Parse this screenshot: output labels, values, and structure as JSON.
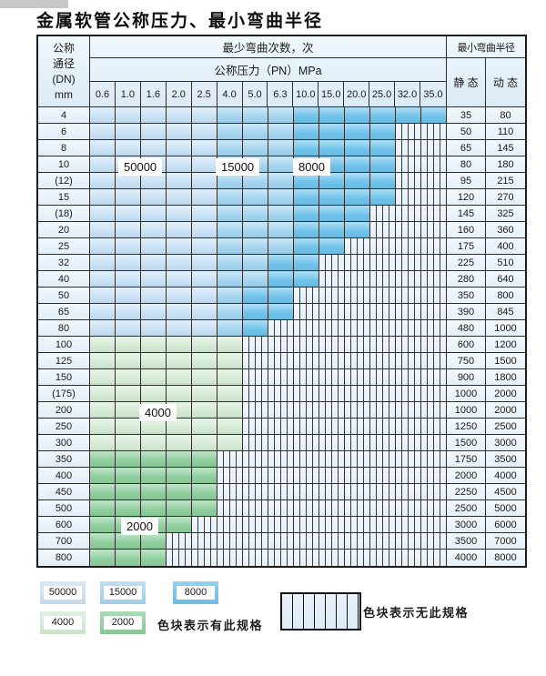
{
  "page": {
    "title": "金属软管公称压力、最小弯曲半径"
  },
  "table": {
    "header": {
      "dn_lines": [
        "公称",
        "通径",
        "(DN)",
        "mm"
      ],
      "cycles_title": "最少弯曲次数，次",
      "pressure_title": "公称压力（PN）MPa",
      "pressures": [
        "0.6",
        "1.0",
        "1.6",
        "2.0",
        "2.5",
        "4.0",
        "5.0",
        "6.3",
        "10.0",
        "15.0",
        "20.0",
        "25.0",
        "32.0",
        "35.0"
      ],
      "radius_title": "最小弯曲半径",
      "static_label": "静 态",
      "dynamic_label": "动 态"
    },
    "rows": [
      {
        "dn": "4",
        "static": "35",
        "dynamic": "80",
        "spans": [
          [
            "50000",
            5
          ],
          [
            "15000",
            3
          ],
          [
            "8000",
            6
          ]
        ]
      },
      {
        "dn": "6",
        "static": "50",
        "dynamic": "110",
        "spans": [
          [
            "50000",
            5
          ],
          [
            "15000",
            3
          ],
          [
            "8000",
            4
          ]
        ]
      },
      {
        "dn": "8",
        "static": "65",
        "dynamic": "145",
        "spans": [
          [
            "50000",
            5
          ],
          [
            "15000",
            3
          ],
          [
            "8000",
            4
          ]
        ]
      },
      {
        "dn": "10",
        "static": "80",
        "dynamic": "180",
        "spans": [
          [
            "50000",
            5
          ],
          [
            "15000",
            3
          ],
          [
            "8000",
            4
          ]
        ]
      },
      {
        "dn": "(12)",
        "static": "95",
        "dynamic": "215",
        "spans": [
          [
            "50000",
            5
          ],
          [
            "15000",
            3
          ],
          [
            "8000",
            4
          ]
        ]
      },
      {
        "dn": "15",
        "static": "120",
        "dynamic": "270",
        "spans": [
          [
            "50000",
            5
          ],
          [
            "15000",
            3
          ],
          [
            "8000",
            4
          ]
        ]
      },
      {
        "dn": "(18)",
        "static": "145",
        "dynamic": "325",
        "spans": [
          [
            "50000",
            5
          ],
          [
            "15000",
            3
          ],
          [
            "8000",
            3
          ]
        ]
      },
      {
        "dn": "20",
        "static": "160",
        "dynamic": "360",
        "spans": [
          [
            "50000",
            5
          ],
          [
            "15000",
            3
          ],
          [
            "8000",
            3
          ]
        ]
      },
      {
        "dn": "25",
        "static": "175",
        "dynamic": "400",
        "spans": [
          [
            "50000",
            5
          ],
          [
            "15000",
            3
          ],
          [
            "8000",
            2
          ]
        ]
      },
      {
        "dn": "32",
        "static": "225",
        "dynamic": "510",
        "spans": [
          [
            "50000",
            5
          ],
          [
            "15000",
            2
          ],
          [
            "8000",
            2
          ]
        ]
      },
      {
        "dn": "40",
        "static": "280",
        "dynamic": "640",
        "spans": [
          [
            "50000",
            5
          ],
          [
            "15000",
            2
          ],
          [
            "8000",
            2
          ]
        ]
      },
      {
        "dn": "50",
        "static": "350",
        "dynamic": "800",
        "spans": [
          [
            "50000",
            5
          ],
          [
            "15000",
            1
          ],
          [
            "8000",
            2
          ]
        ]
      },
      {
        "dn": "65",
        "static": "390",
        "dynamic": "845",
        "spans": [
          [
            "50000",
            5
          ],
          [
            "15000",
            1
          ],
          [
            "8000",
            2
          ]
        ]
      },
      {
        "dn": "80",
        "static": "480",
        "dynamic": "1000",
        "spans": [
          [
            "50000",
            5
          ],
          [
            "15000",
            1
          ],
          [
            "8000",
            1
          ]
        ]
      },
      {
        "dn": "100",
        "static": "600",
        "dynamic": "1200",
        "spans": [
          [
            "4000",
            6
          ]
        ]
      },
      {
        "dn": "125",
        "static": "750",
        "dynamic": "1500",
        "spans": [
          [
            "4000",
            6
          ]
        ]
      },
      {
        "dn": "150",
        "static": "900",
        "dynamic": "1800",
        "spans": [
          [
            "4000",
            6
          ]
        ]
      },
      {
        "dn": "(175)",
        "static": "1000",
        "dynamic": "2000",
        "spans": [
          [
            "4000",
            6
          ]
        ]
      },
      {
        "dn": "200",
        "static": "1000",
        "dynamic": "2000",
        "spans": [
          [
            "4000",
            6
          ]
        ]
      },
      {
        "dn": "250",
        "static": "1250",
        "dynamic": "2500",
        "spans": [
          [
            "4000",
            6
          ]
        ]
      },
      {
        "dn": "300",
        "static": "1500",
        "dynamic": "3000",
        "spans": [
          [
            "4000",
            6
          ]
        ]
      },
      {
        "dn": "350",
        "static": "1750",
        "dynamic": "3500",
        "spans": [
          [
            "2000",
            5
          ]
        ]
      },
      {
        "dn": "400",
        "static": "2000",
        "dynamic": "4000",
        "spans": [
          [
            "2000",
            5
          ]
        ]
      },
      {
        "dn": "450",
        "static": "2250",
        "dynamic": "4500",
        "spans": [
          [
            "2000",
            5
          ]
        ]
      },
      {
        "dn": "500",
        "static": "2500",
        "dynamic": "5000",
        "spans": [
          [
            "2000",
            5
          ]
        ]
      },
      {
        "dn": "600",
        "static": "3000",
        "dynamic": "6000",
        "spans": [
          [
            "2000",
            4
          ]
        ]
      },
      {
        "dn": "700",
        "static": "3500",
        "dynamic": "7000",
        "spans": [
          [
            "2000",
            3
          ]
        ]
      },
      {
        "dn": "800",
        "static": "4000",
        "dynamic": "8000",
        "spans": [
          [
            "2000",
            3
          ]
        ]
      }
    ],
    "overlay_labels": [
      {
        "text": "50000"
      },
      {
        "text": "15000"
      },
      {
        "text": "8000"
      },
      {
        "text": "4000"
      },
      {
        "text": "2000"
      }
    ]
  },
  "legend": {
    "items": [
      {
        "key": "50000",
        "label": "50000"
      },
      {
        "key": "15000",
        "label": "15000"
      },
      {
        "key": "8000",
        "label": "8000"
      },
      {
        "key": "4000",
        "label": "4000"
      },
      {
        "key": "2000",
        "label": "2000"
      }
    ],
    "has_spec_text": "色块表示有此规格",
    "no_spec_text": "色块表示无此规格"
  },
  "colors": {
    "50000": "#c9e2f5",
    "15000": "#a4d5f0",
    "8000": "#6fc3ec",
    "4000": "#d5ebd5",
    "2000": "#8ecf9d",
    "no_spec_bg": "#eaf2fa",
    "grid_line": "#2e2e2e"
  }
}
